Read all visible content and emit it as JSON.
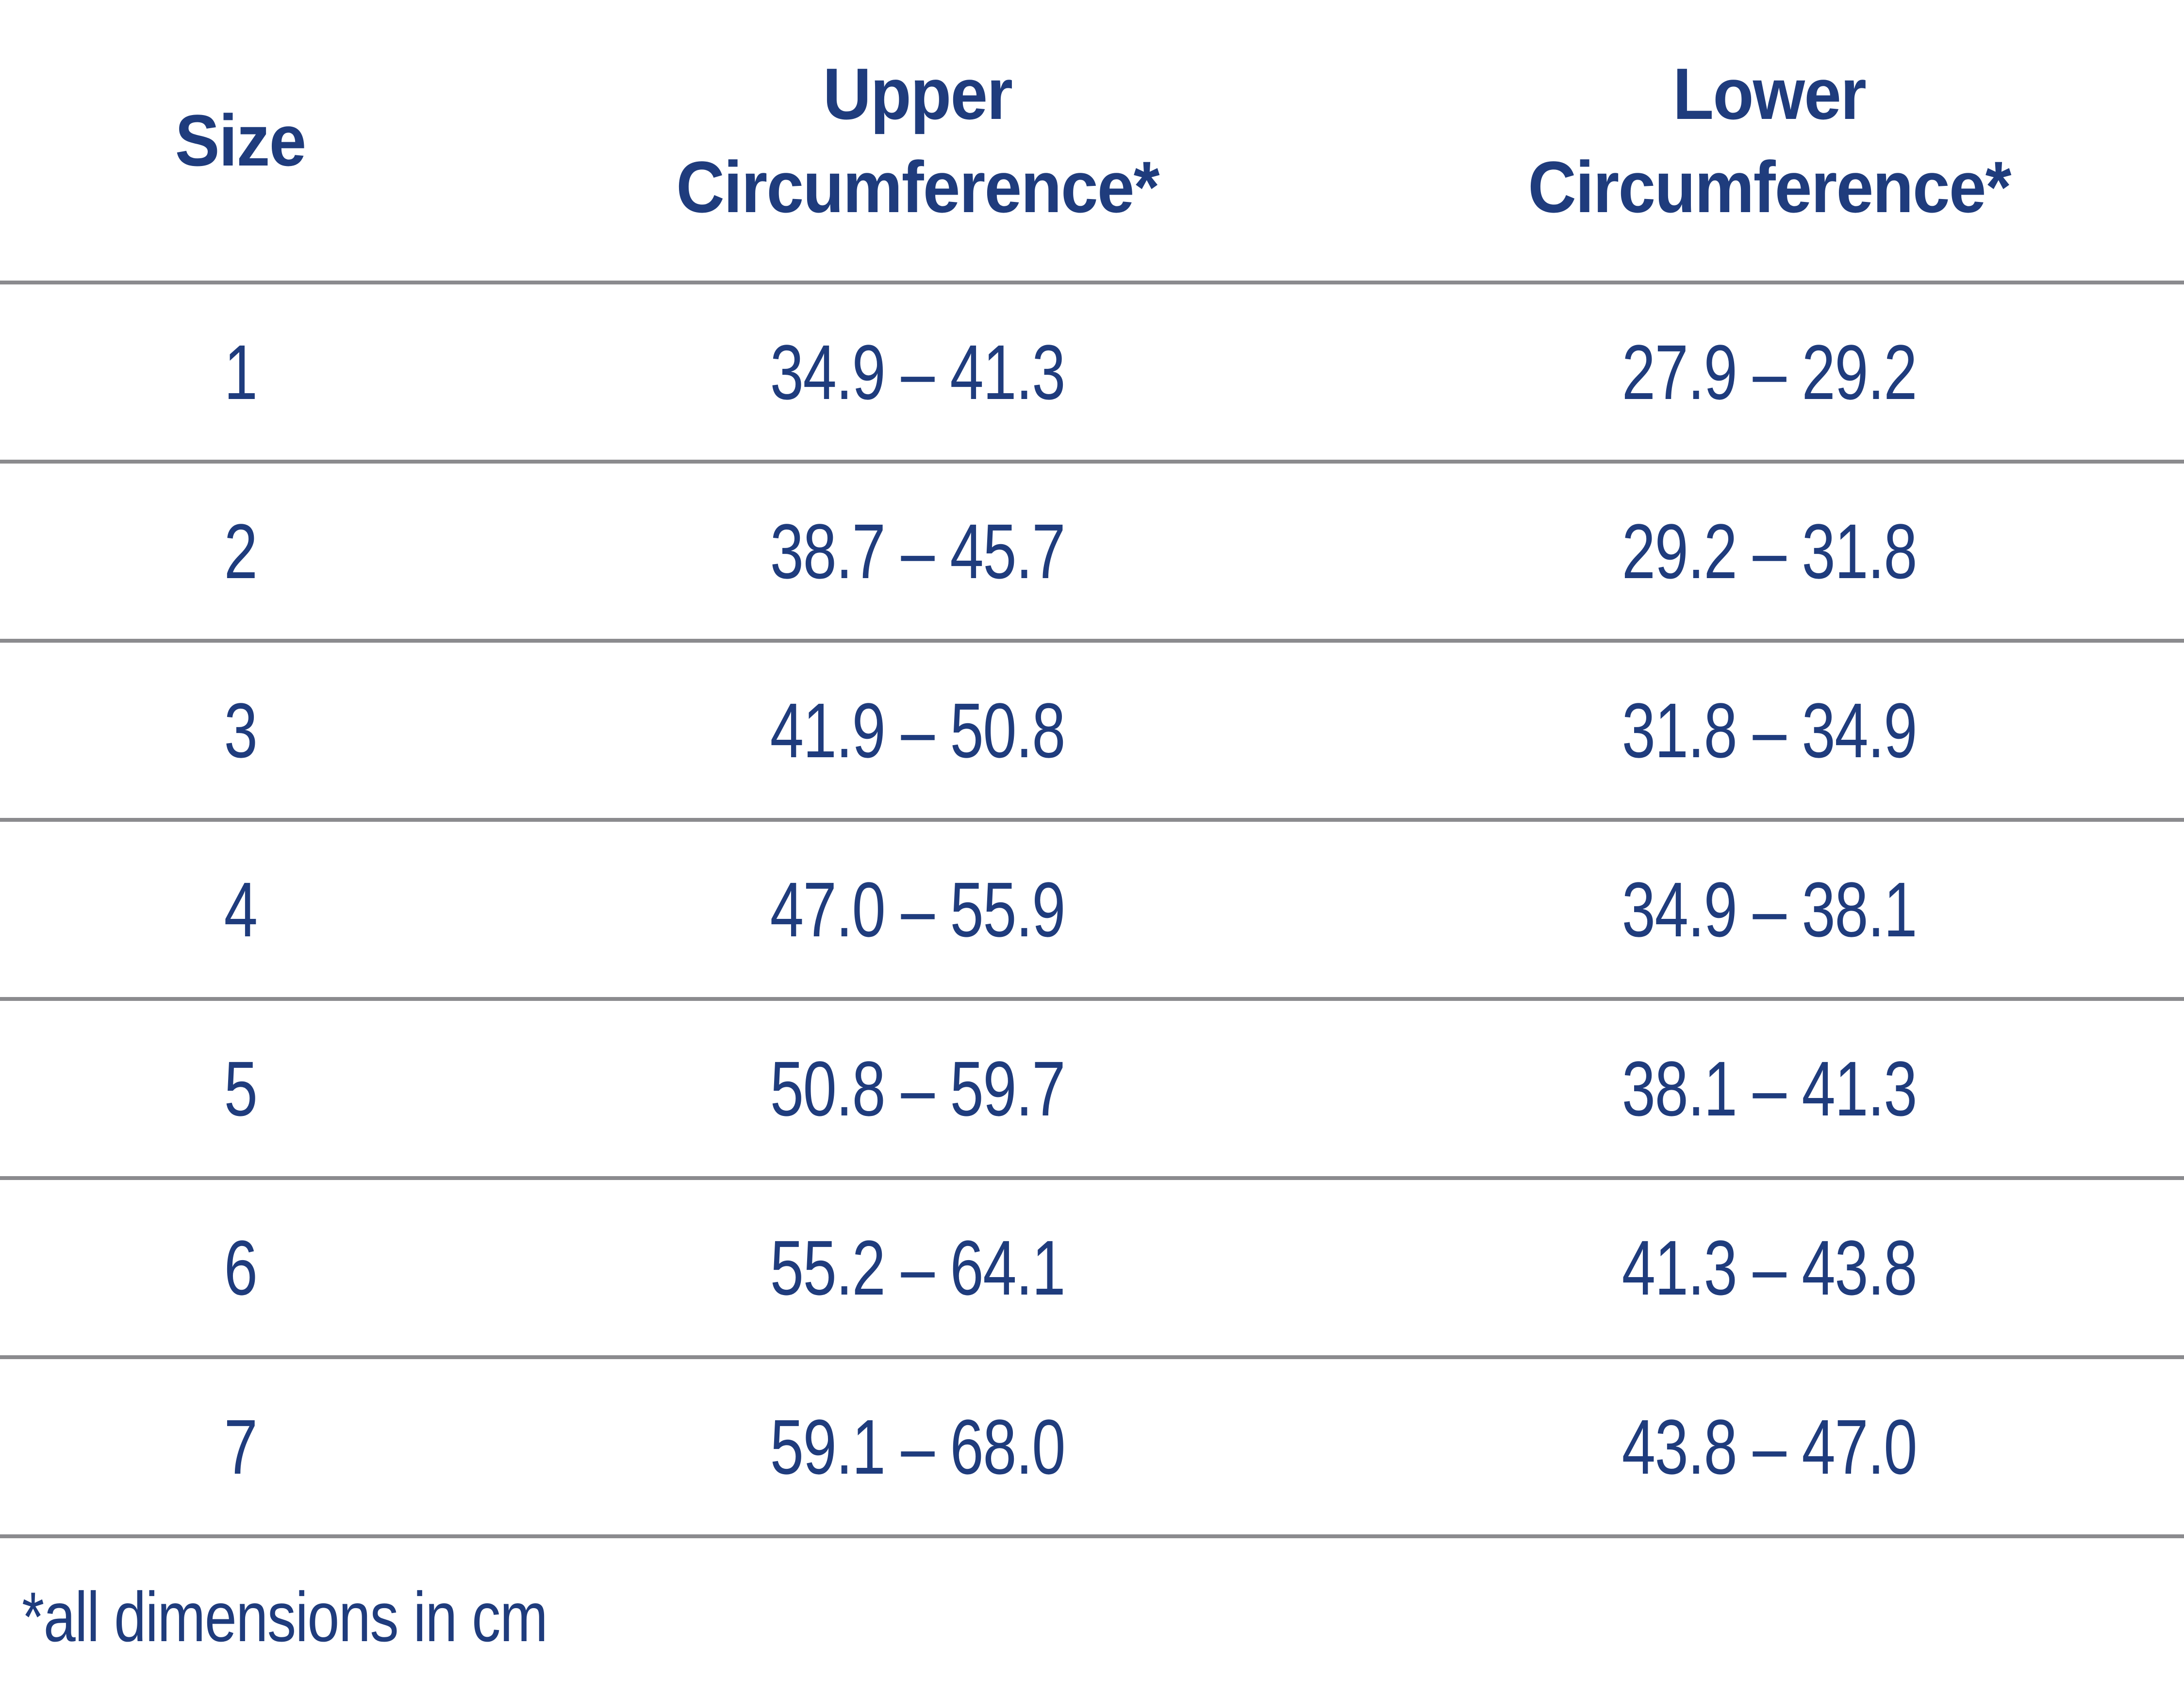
{
  "colors": {
    "text_navy": "#1f3c7d",
    "divider_gray": "#8b8b8e",
    "background": "#ffffff"
  },
  "table": {
    "header": {
      "size": "Size",
      "upper_line1": "Upper",
      "upper_line2": "Circumference*",
      "lower_line1": "Lower",
      "lower_line2": "Circumference*"
    },
    "rows": [
      {
        "size": "1",
        "upper": "34.9 – 41.3",
        "lower": "27.9 – 29.2"
      },
      {
        "size": "2",
        "upper": "38.7 – 45.7",
        "lower": "29.2 – 31.8"
      },
      {
        "size": "3",
        "upper": "41.9 – 50.8",
        "lower": "31.8 – 34.9"
      },
      {
        "size": "4",
        "upper": "47.0 – 55.9",
        "lower": "34.9 – 38.1"
      },
      {
        "size": "5",
        "upper": "50.8 – 59.7",
        "lower": "38.1 – 41.3"
      },
      {
        "size": "6",
        "upper": "55.2 – 64.1",
        "lower": "41.3 – 43.8"
      },
      {
        "size": "7",
        "upper": "59.1 – 68.0",
        "lower": "43.8 – 47.0"
      }
    ],
    "footnote": "*all dimensions in cm"
  }
}
